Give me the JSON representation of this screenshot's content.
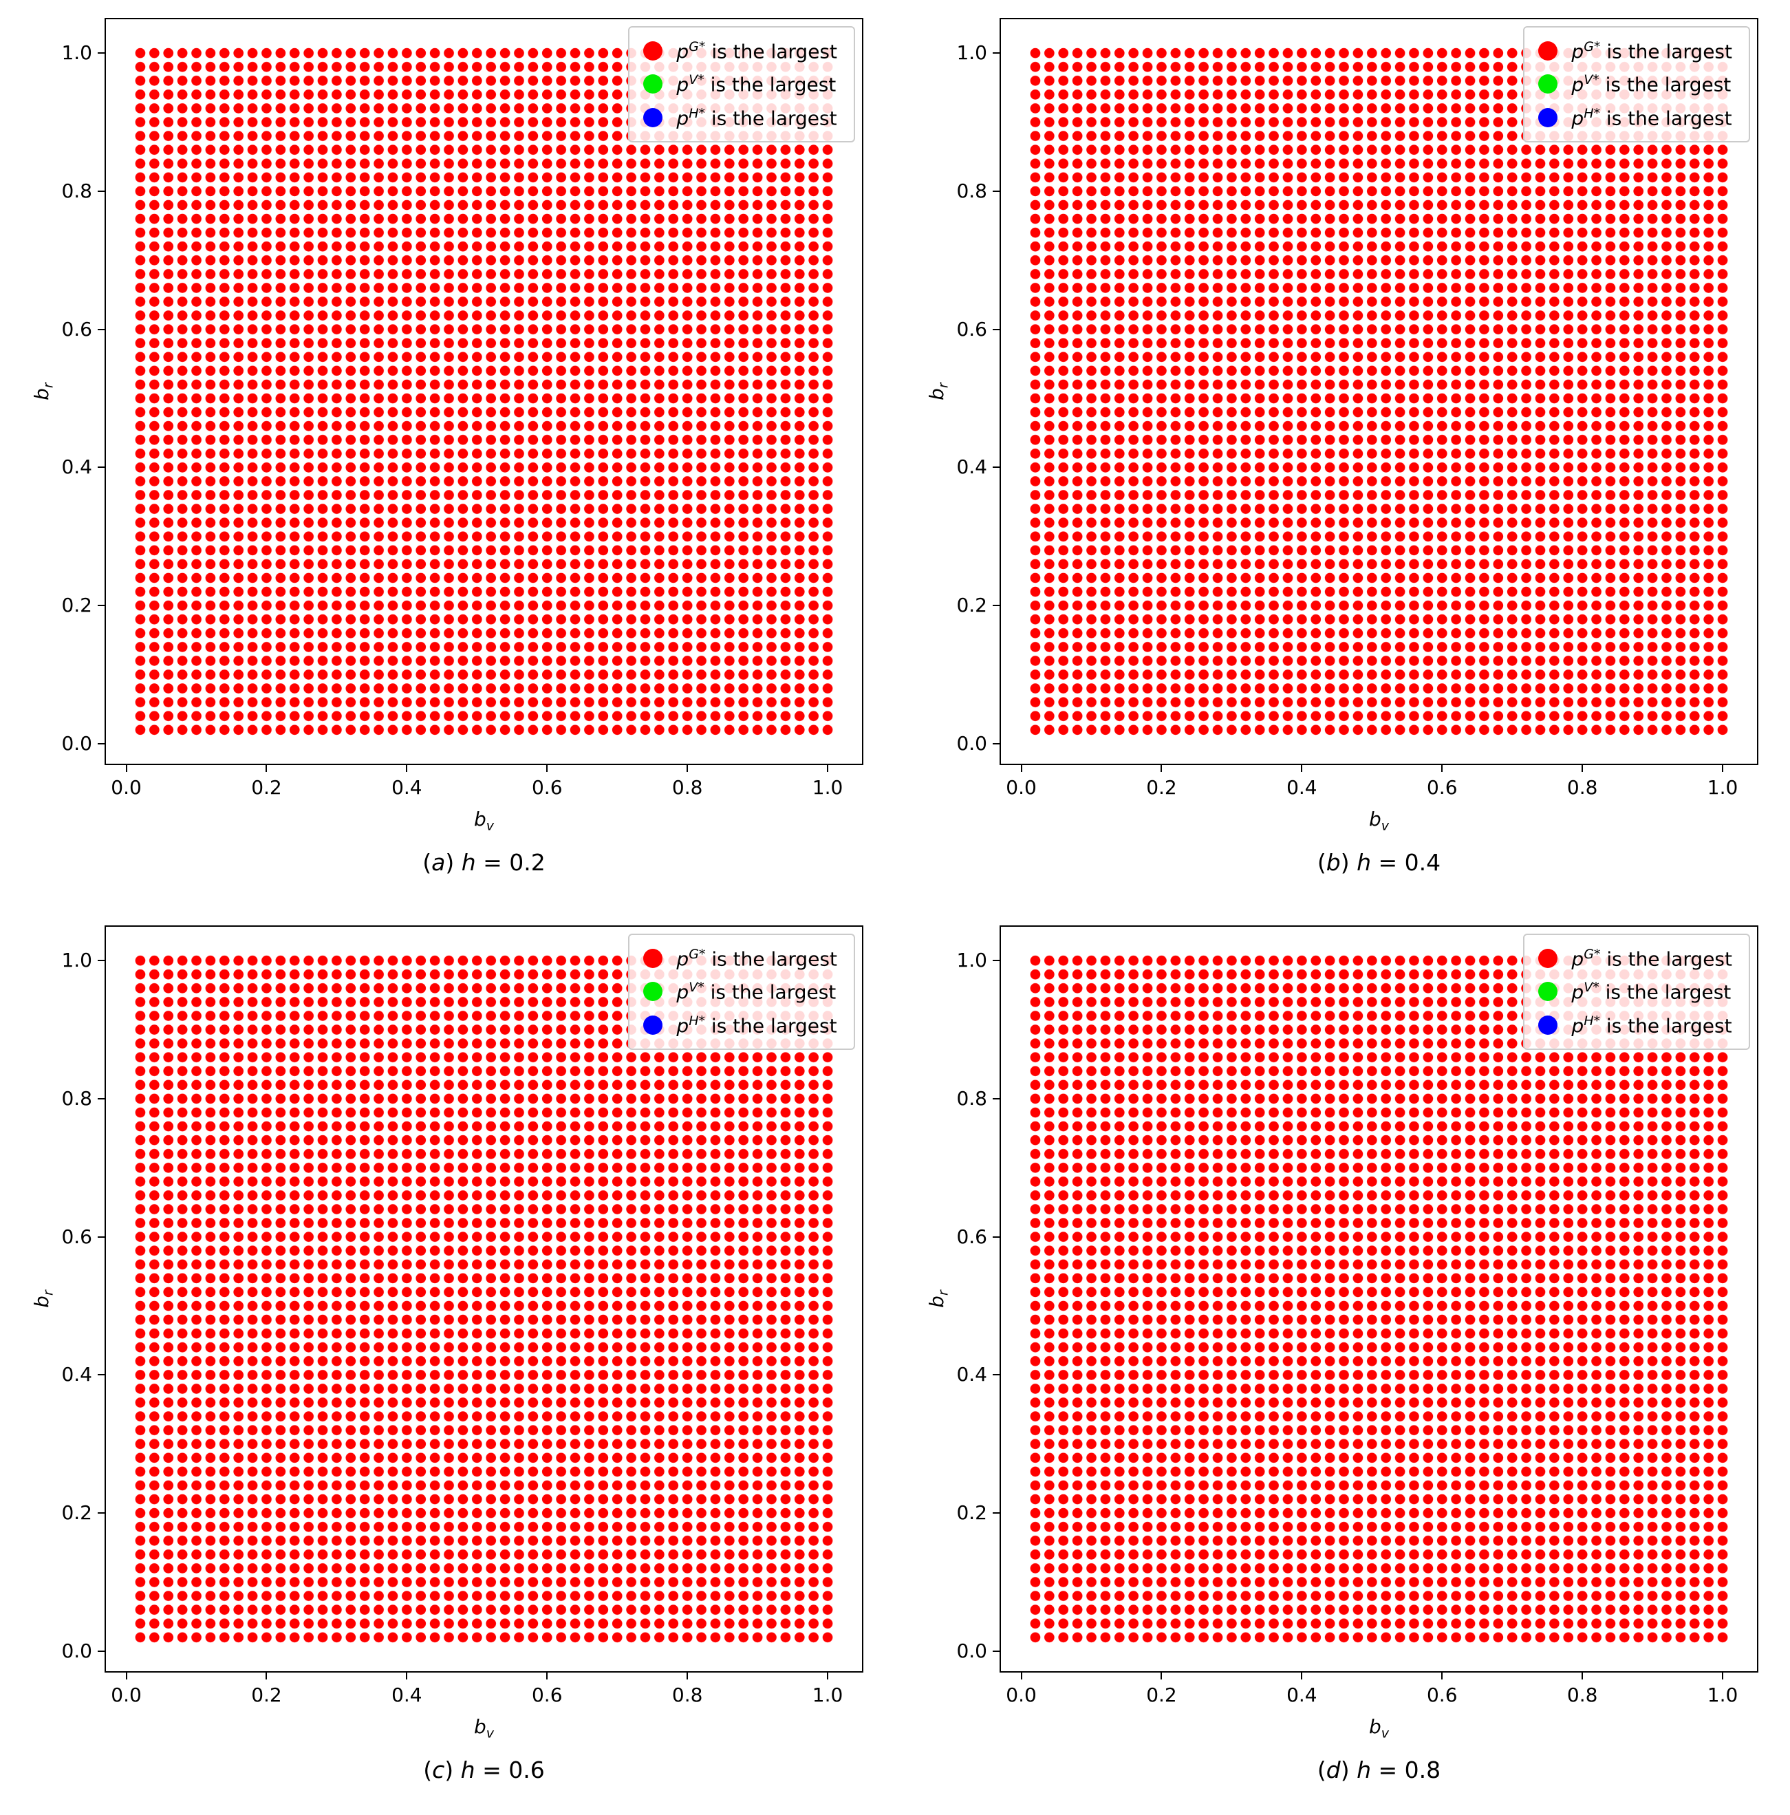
{
  "figure": {
    "background": "#ffffff",
    "axis_color": "#000000"
  },
  "chart_data": [
    {
      "type": "scatter",
      "panel": "a",
      "caption": {
        "text": "(a) h = 0.2",
        "index": "a",
        "var": "h",
        "value": "0.2"
      },
      "xlabel": {
        "base": "b",
        "sub": "v"
      },
      "ylabel": {
        "base": "b",
        "sub": "r"
      },
      "xlim": [
        -0.029,
        1.049
      ],
      "ylim": [
        -0.029,
        1.049
      ],
      "xtick_values": [
        0.0,
        0.2,
        0.4,
        0.6,
        0.8,
        1.0
      ],
      "xtick_labels": [
        "0.0",
        "0.2",
        "0.4",
        "0.6",
        "0.8",
        "1.0"
      ],
      "ytick_values": [
        0.0,
        0.2,
        0.4,
        0.6,
        0.8,
        1.0
      ],
      "ytick_labels": [
        "0.0",
        "0.2",
        "0.4",
        "0.6",
        "0.8",
        "1.0"
      ],
      "legend": {
        "position": "upper-right",
        "entries": [
          {
            "color": "#ff0000",
            "sym": "p",
            "sup": "G*",
            "rest": "is the largest",
            "text": "p^{G*} is the largest"
          },
          {
            "color": "#00ee00",
            "sym": "p",
            "sup": "V*",
            "rest": "is the largest",
            "text": "p^{V*} is the largest"
          },
          {
            "color": "#0000ff",
            "sym": "p",
            "sup": "H*",
            "rest": "is the largest",
            "text": "p^{H*} is the largest"
          }
        ]
      },
      "grid_points": {
        "description": "uniform 50x50 grid of sample points; every point is red, i.e. p^{G*} is the largest everywhere",
        "x_start": 0.02,
        "x_end": 1.0,
        "y_start": 0.02,
        "y_end": 1.0,
        "step": 0.02,
        "count": 2500,
        "series": "p^{G*} is the largest",
        "color": "#ff0000"
      }
    },
    {
      "type": "scatter",
      "panel": "b",
      "caption": {
        "text": "(b) h = 0.4",
        "index": "b",
        "var": "h",
        "value": "0.4"
      },
      "xlabel": {
        "base": "b",
        "sub": "v"
      },
      "ylabel": {
        "base": "b",
        "sub": "r"
      },
      "xlim": [
        -0.029,
        1.049
      ],
      "ylim": [
        -0.029,
        1.049
      ],
      "xtick_values": [
        0.0,
        0.2,
        0.4,
        0.6,
        0.8,
        1.0
      ],
      "xtick_labels": [
        "0.0",
        "0.2",
        "0.4",
        "0.6",
        "0.8",
        "1.0"
      ],
      "ytick_values": [
        0.0,
        0.2,
        0.4,
        0.6,
        0.8,
        1.0
      ],
      "ytick_labels": [
        "0.0",
        "0.2",
        "0.4",
        "0.6",
        "0.8",
        "1.0"
      ],
      "legend": {
        "position": "upper-right",
        "entries": [
          {
            "color": "#ff0000",
            "sym": "p",
            "sup": "G*",
            "rest": "is the largest",
            "text": "p^{G*} is the largest"
          },
          {
            "color": "#00ee00",
            "sym": "p",
            "sup": "V*",
            "rest": "is the largest",
            "text": "p^{V*} is the largest"
          },
          {
            "color": "#0000ff",
            "sym": "p",
            "sup": "H*",
            "rest": "is the largest",
            "text": "p^{H*} is the largest"
          }
        ]
      },
      "grid_points": {
        "description": "uniform 50x50 grid of sample points; every point is red, i.e. p^{G*} is the largest everywhere",
        "x_start": 0.02,
        "x_end": 1.0,
        "y_start": 0.02,
        "y_end": 1.0,
        "step": 0.02,
        "count": 2500,
        "series": "p^{G*} is the largest",
        "color": "#ff0000"
      }
    },
    {
      "type": "scatter",
      "panel": "c",
      "caption": {
        "text": "(c) h = 0.6",
        "index": "c",
        "var": "h",
        "value": "0.6"
      },
      "xlabel": {
        "base": "b",
        "sub": "v"
      },
      "ylabel": {
        "base": "b",
        "sub": "r"
      },
      "xlim": [
        -0.029,
        1.049
      ],
      "ylim": [
        -0.029,
        1.049
      ],
      "xtick_values": [
        0.0,
        0.2,
        0.4,
        0.6,
        0.8,
        1.0
      ],
      "xtick_labels": [
        "0.0",
        "0.2",
        "0.4",
        "0.6",
        "0.8",
        "1.0"
      ],
      "ytick_values": [
        0.0,
        0.2,
        0.4,
        0.6,
        0.8,
        1.0
      ],
      "ytick_labels": [
        "0.0",
        "0.2",
        "0.4",
        "0.6",
        "0.8",
        "1.0"
      ],
      "legend": {
        "position": "upper-right",
        "entries": [
          {
            "color": "#ff0000",
            "sym": "p",
            "sup": "G*",
            "rest": "is the largest",
            "text": "p^{G*} is the largest"
          },
          {
            "color": "#00ee00",
            "sym": "p",
            "sup": "V*",
            "rest": "is the largest",
            "text": "p^{V*} is the largest"
          },
          {
            "color": "#0000ff",
            "sym": "p",
            "sup": "H*",
            "rest": "is the largest",
            "text": "p^{H*} is the largest"
          }
        ]
      },
      "grid_points": {
        "description": "uniform 50x50 grid of sample points; every point is red, i.e. p^{G*} is the largest everywhere",
        "x_start": 0.02,
        "x_end": 1.0,
        "y_start": 0.02,
        "y_end": 1.0,
        "step": 0.02,
        "count": 2500,
        "series": "p^{G*} is the largest",
        "color": "#ff0000"
      }
    },
    {
      "type": "scatter",
      "panel": "d",
      "caption": {
        "text": "(d) h = 0.8",
        "index": "d",
        "var": "h",
        "value": "0.8"
      },
      "xlabel": {
        "base": "b",
        "sub": "v"
      },
      "ylabel": {
        "base": "b",
        "sub": "r"
      },
      "xlim": [
        -0.029,
        1.049
      ],
      "ylim": [
        -0.029,
        1.049
      ],
      "xtick_values": [
        0.0,
        0.2,
        0.4,
        0.6,
        0.8,
        1.0
      ],
      "xtick_labels": [
        "0.0",
        "0.2",
        "0.4",
        "0.6",
        "0.8",
        "1.0"
      ],
      "ytick_values": [
        0.0,
        0.2,
        0.4,
        0.6,
        0.8,
        1.0
      ],
      "ytick_labels": [
        "0.0",
        "0.2",
        "0.4",
        "0.6",
        "0.8",
        "1.0"
      ],
      "legend": {
        "position": "upper-right",
        "entries": [
          {
            "color": "#ff0000",
            "sym": "p",
            "sup": "G*",
            "rest": "is the largest",
            "text": "p^{G*} is the largest"
          },
          {
            "color": "#00ee00",
            "sym": "p",
            "sup": "V*",
            "rest": "is the largest",
            "text": "p^{V*} is the largest"
          },
          {
            "color": "#0000ff",
            "sym": "p",
            "sup": "H*",
            "rest": "is the largest",
            "text": "p^{H*} is the largest"
          }
        ]
      },
      "grid_points": {
        "description": "uniform 50x50 grid of sample points; every point is red, i.e. p^{G*} is the largest everywhere",
        "x_start": 0.02,
        "x_end": 1.0,
        "y_start": 0.02,
        "y_end": 1.0,
        "step": 0.02,
        "count": 2500,
        "series": "p^{G*} is the largest",
        "color": "#ff0000"
      }
    }
  ]
}
